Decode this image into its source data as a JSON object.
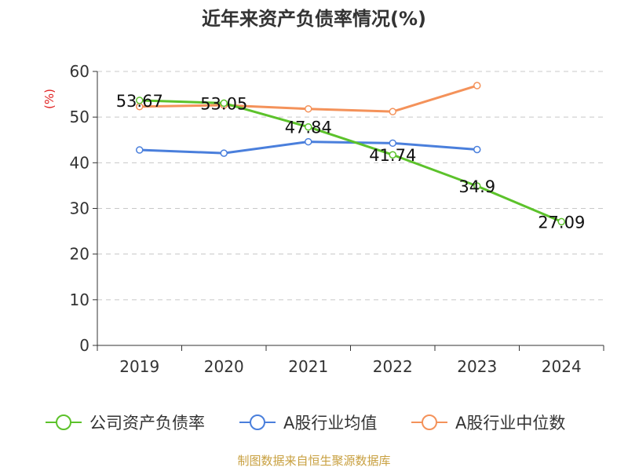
{
  "chart_data": {
    "type": "line",
    "title": "近年来资产负债率情况(%)",
    "ylabel": "(%)",
    "xlabel": "",
    "categories": [
      "2019",
      "2020",
      "2021",
      "2022",
      "2023",
      "2024"
    ],
    "ylim": [
      0,
      60
    ],
    "yticks": [
      0,
      10,
      20,
      30,
      40,
      50,
      60
    ],
    "grid": true,
    "legend_position": "bottom",
    "series": [
      {
        "name": "公司资产负债率",
        "color": "#5cc22b",
        "values": [
          53.67,
          53.05,
          47.84,
          41.74,
          34.9,
          27.09
        ],
        "labels": [
          "53.67",
          "53.05",
          "47.84",
          "41.74",
          "34.9",
          "27.09"
        ]
      },
      {
        "name": "A股行业均值",
        "color": "#4a7fdc",
        "values": [
          42.8,
          42.1,
          44.6,
          44.3,
          42.9,
          null
        ]
      },
      {
        "name": "A股行业中位数",
        "color": "#f4925a",
        "values": [
          52.3,
          52.6,
          51.8,
          51.2,
          56.9,
          null
        ]
      }
    ]
  },
  "source_text": "制图数据来自恒生聚源数据库"
}
